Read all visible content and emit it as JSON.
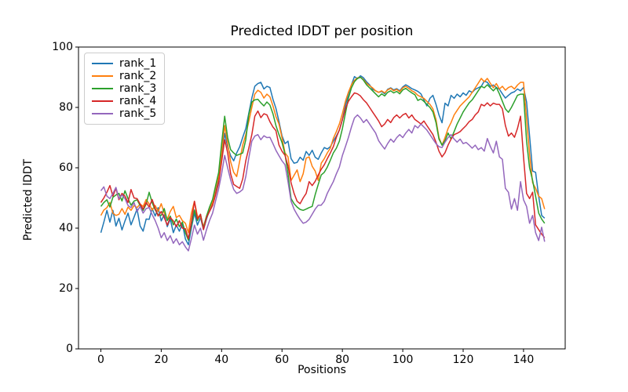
{
  "figure": {
    "title": "Predicted lDDT per position",
    "xlabel": "Positions",
    "ylabel": "Predicted lDDT"
  },
  "chart_data": {
    "type": "line",
    "title": "Predicted lDDT per position",
    "xlabel": "Positions",
    "ylabel": "Predicted lDDT",
    "xlim": [
      -7.4,
      153.8
    ],
    "ylim": [
      0,
      100
    ],
    "xticks": [
      0,
      20,
      40,
      60,
      80,
      100,
      120,
      140
    ],
    "yticks": [
      0,
      20,
      40,
      60,
      80,
      100
    ],
    "grid": false,
    "legend_position": "upper left",
    "x": [
      0,
      1,
      2,
      3,
      4,
      5,
      6,
      7,
      8,
      9,
      10,
      11,
      12,
      13,
      14,
      15,
      16,
      17,
      18,
      19,
      20,
      21,
      22,
      23,
      24,
      25,
      26,
      27,
      28,
      29,
      30,
      31,
      32,
      33,
      34,
      35,
      36,
      37,
      38,
      39,
      40,
      41,
      42,
      43,
      44,
      45,
      46,
      47,
      48,
      49,
      50,
      51,
      52,
      53,
      54,
      55,
      56,
      57,
      58,
      59,
      60,
      61,
      62,
      63,
      64,
      65,
      66,
      67,
      68,
      69,
      70,
      71,
      72,
      73,
      74,
      75,
      76,
      77,
      78,
      79,
      80,
      81,
      82,
      83,
      84,
      85,
      86,
      87,
      88,
      89,
      90,
      91,
      92,
      93,
      94,
      95,
      96,
      97,
      98,
      99,
      100,
      101,
      102,
      103,
      104,
      105,
      106,
      107,
      108,
      109,
      110,
      111,
      112,
      113,
      114,
      115,
      116,
      117,
      118,
      119,
      120,
      121,
      122,
      123,
      124,
      125,
      126,
      127,
      128,
      129,
      130,
      131,
      132,
      133,
      134,
      135,
      136,
      137,
      138,
      139,
      140,
      141,
      142,
      143,
      144,
      145,
      146,
      147
    ],
    "series": [
      {
        "name": "rank_1",
        "color": "#1f77b4",
        "values": [
          38.5,
          42.0,
          45.9,
          42.0,
          45.9,
          40.7,
          43.3,
          39.4,
          42.4,
          45.0,
          41.1,
          43.7,
          46.3,
          40.7,
          39.0,
          43.0,
          42.9,
          46.5,
          44.0,
          46.8,
          42.4,
          44.5,
          40.5,
          43.0,
          38.5,
          41.0,
          39.0,
          41.5,
          36.4,
          34.5,
          40.0,
          45.0,
          41.0,
          43.5,
          39.5,
          43.0,
          46.0,
          48.0,
          52.0,
          56.0,
          63.0,
          71.4,
          67.0,
          64.0,
          62.3,
          64.9,
          67.0,
          70.1,
          73.0,
          78.0,
          83.1,
          87.0,
          87.9,
          88.3,
          86.1,
          87.0,
          86.6,
          82.7,
          79.7,
          75.3,
          70.6,
          68.0,
          68.8,
          63.0,
          61.5,
          61.8,
          63.5,
          62.5,
          65.4,
          64.1,
          65.8,
          63.5,
          62.8,
          64.9,
          66.7,
          66.2,
          67.0,
          68.8,
          70.5,
          72.5,
          76.0,
          80.5,
          84.5,
          87.5,
          90.2,
          89.5,
          90.5,
          89.8,
          88.5,
          87.5,
          86.0,
          85.5,
          85.0,
          85.3,
          84.5,
          86.0,
          86.5,
          85.8,
          86.2,
          85.5,
          86.8,
          87.5,
          86.9,
          86.2,
          85.8,
          85.3,
          84.5,
          82.5,
          80.5,
          83.0,
          84.0,
          81.0,
          77.5,
          74.9,
          81.4,
          80.5,
          84.0,
          83.0,
          84.4,
          83.5,
          84.8,
          84.0,
          85.5,
          85.0,
          86.0,
          86.5,
          87.0,
          88.7,
          88.3,
          87.0,
          87.4,
          86.6,
          86.0,
          84.5,
          83.1,
          84.0,
          84.8,
          85.2,
          86.1,
          85.5,
          86.6,
          81.8,
          70.6,
          58.9,
          58.5,
          50.6,
          44.2,
          43.3
        ]
      },
      {
        "name": "rank_2",
        "color": "#ff7f0e",
        "values": [
          44.2,
          46.0,
          46.8,
          48.5,
          45.0,
          44.2,
          44.6,
          46.5,
          44.6,
          47.0,
          45.9,
          47.5,
          46.8,
          48.0,
          47.2,
          49.5,
          48.0,
          46.0,
          47.5,
          45.5,
          48.1,
          45.0,
          43.0,
          45.5,
          47.2,
          43.5,
          44.2,
          42.5,
          41.6,
          38.5,
          45.0,
          48.9,
          44.0,
          43.7,
          40.5,
          44.0,
          46.5,
          48.5,
          53.0,
          57.0,
          65.0,
          74.0,
          68.0,
          62.0,
          58.5,
          57.1,
          62.3,
          67.5,
          71.0,
          75.3,
          80.0,
          84.4,
          85.7,
          85.0,
          83.1,
          84.4,
          83.5,
          80.5,
          77.0,
          74.5,
          70.0,
          64.9,
          63.6,
          55.8,
          57.5,
          59.3,
          55.4,
          58.0,
          63.2,
          63.6,
          60.5,
          58.9,
          55.8,
          61.5,
          63.0,
          64.9,
          66.5,
          69.7,
          72.0,
          74.5,
          78.0,
          82.0,
          85.0,
          87.5,
          89.0,
          89.8,
          90.0,
          89.2,
          88.0,
          87.2,
          86.5,
          85.5,
          85.0,
          85.5,
          84.8,
          85.8,
          86.3,
          85.5,
          86.0,
          85.2,
          86.5,
          87.0,
          86.3,
          85.5,
          85.0,
          84.0,
          83.5,
          83.0,
          82.0,
          81.0,
          79.5,
          76.0,
          70.0,
          67.5,
          70.0,
          73.0,
          75.0,
          77.5,
          79.0,
          80.5,
          81.5,
          82.5,
          83.5,
          85.0,
          86.5,
          88.0,
          89.6,
          88.5,
          89.6,
          88.0,
          86.5,
          87.9,
          86.1,
          87.0,
          85.7,
          86.6,
          87.0,
          86.1,
          87.4,
          88.3,
          88.3,
          76.2,
          64.5,
          55.0,
          53.2,
          50.6,
          49.8,
          46.3
        ]
      },
      {
        "name": "rank_3",
        "color": "#2ca02c",
        "values": [
          47.2,
          48.5,
          49.4,
          47.0,
          50.2,
          51.0,
          51.5,
          49.0,
          52.4,
          49.8,
          47.6,
          49.0,
          49.4,
          47.5,
          45.9,
          48.0,
          51.9,
          48.5,
          46.0,
          44.5,
          44.2,
          46.5,
          42.5,
          44.0,
          41.1,
          43.0,
          40.5,
          42.0,
          38.5,
          36.0,
          41.0,
          46.0,
          42.5,
          44.6,
          40.0,
          44.0,
          47.0,
          49.5,
          54.0,
          58.4,
          68.0,
          77.1,
          70.0,
          66.0,
          64.9,
          64.1,
          64.5,
          64.9,
          69.3,
          77.5,
          81.8,
          82.5,
          82.7,
          81.5,
          80.5,
          81.8,
          80.8,
          77.9,
          74.0,
          71.0,
          68.4,
          64.5,
          58.0,
          49.8,
          48.1,
          47.0,
          46.2,
          45.9,
          46.3,
          46.8,
          47.2,
          51.1,
          54.5,
          57.6,
          58.5,
          60.2,
          62.5,
          64.9,
          66.5,
          68.8,
          73.0,
          78.0,
          83.0,
          86.5,
          88.5,
          89.6,
          90.0,
          89.0,
          87.5,
          86.5,
          85.5,
          84.5,
          83.5,
          84.5,
          83.8,
          85.0,
          85.5,
          84.8,
          85.3,
          84.5,
          85.8,
          86.3,
          85.5,
          84.8,
          84.2,
          82.3,
          82.8,
          82.0,
          81.0,
          80.0,
          78.5,
          75.0,
          69.5,
          67.5,
          69.0,
          71.5,
          69.5,
          72.0,
          74.5,
          76.5,
          78.5,
          80.0,
          81.5,
          82.5,
          84.0,
          85.5,
          87.0,
          86.5,
          87.5,
          86.5,
          85.5,
          86.6,
          84.5,
          82.0,
          79.5,
          78.4,
          80.0,
          82.0,
          84.0,
          84.4,
          84.4,
          68.8,
          60.0,
          55.8,
          50.6,
          45.0,
          43.0,
          41.6
        ]
      },
      {
        "name": "rank_4",
        "color": "#d62728",
        "values": [
          48.5,
          50.0,
          51.9,
          54.1,
          50.6,
          53.2,
          49.4,
          51.5,
          50.6,
          48.5,
          52.8,
          50.0,
          49.8,
          48.0,
          46.3,
          48.5,
          47.0,
          49.5,
          46.5,
          44.0,
          45.5,
          43.5,
          41.0,
          43.5,
          42.4,
          40.5,
          42.5,
          40.0,
          39.8,
          36.5,
          42.0,
          48.9,
          43.0,
          44.6,
          39.5,
          43.5,
          45.5,
          47.5,
          51.0,
          55.0,
          62.0,
          69.3,
          65.0,
          58.0,
          54.5,
          53.8,
          53.2,
          56.3,
          62.3,
          66.5,
          71.0,
          77.1,
          78.8,
          76.6,
          77.9,
          77.5,
          75.3,
          73.5,
          72.3,
          67.5,
          65.5,
          64.1,
          60.6,
          55.0,
          51.5,
          48.9,
          48.1,
          50.0,
          51.5,
          55.4,
          54.1,
          55.5,
          57.6,
          59.5,
          61.0,
          63.0,
          64.9,
          67.0,
          70.1,
          72.5,
          76.0,
          79.5,
          82.0,
          83.5,
          84.8,
          84.5,
          83.8,
          82.5,
          81.5,
          80.0,
          78.5,
          77.0,
          75.5,
          73.6,
          74.5,
          76.0,
          75.0,
          76.6,
          77.5,
          76.5,
          77.5,
          78.0,
          76.5,
          77.5,
          76.0,
          75.3,
          74.5,
          75.5,
          74.0,
          72.5,
          71.0,
          68.5,
          65.5,
          63.6,
          65.0,
          67.5,
          69.5,
          71.0,
          71.4,
          72.0,
          73.0,
          74.0,
          75.3,
          76.0,
          77.5,
          78.5,
          81.0,
          80.5,
          81.5,
          80.5,
          81.4,
          81.0,
          81.0,
          79.5,
          74.0,
          70.5,
          71.5,
          70.1,
          73.0,
          77.1,
          63.6,
          51.5,
          49.8,
          51.9,
          41.1,
          39.5,
          38.0,
          36.8
        ]
      },
      {
        "name": "rank_5",
        "color": "#9467bd",
        "values": [
          52.4,
          53.7,
          50.6,
          49.8,
          51.5,
          53.5,
          49.8,
          51.0,
          49.8,
          47.5,
          46.8,
          48.5,
          45.5,
          47.2,
          45.0,
          46.5,
          46.8,
          44.5,
          42.5,
          40.0,
          36.8,
          38.5,
          35.9,
          37.5,
          35.0,
          36.5,
          34.5,
          35.5,
          33.8,
          32.5,
          36.5,
          41.0,
          38.0,
          40.0,
          36.0,
          39.5,
          42.5,
          45.0,
          49.0,
          53.0,
          58.0,
          64.1,
          60.0,
          56.0,
          52.8,
          51.5,
          52.0,
          52.8,
          57.1,
          63.2,
          68.8,
          70.5,
          71.0,
          69.3,
          70.6,
          70.0,
          70.1,
          68.0,
          65.8,
          64.0,
          62.3,
          61.0,
          55.4,
          48.9,
          46.3,
          44.5,
          42.9,
          41.6,
          42.0,
          42.9,
          44.6,
          46.3,
          47.6,
          47.6,
          48.9,
          51.5,
          53.5,
          55.4,
          58.0,
          60.2,
          64.1,
          67.0,
          70.0,
          73.5,
          76.5,
          77.5,
          76.5,
          75.0,
          76.0,
          74.5,
          73.0,
          71.5,
          69.0,
          67.5,
          66.2,
          68.0,
          69.5,
          68.5,
          70.0,
          71.0,
          70.0,
          71.5,
          72.7,
          71.5,
          74.0,
          73.2,
          74.5,
          73.5,
          72.5,
          71.0,
          69.5,
          68.0,
          67.0,
          66.7,
          68.5,
          70.0,
          71.0,
          69.5,
          68.5,
          69.5,
          68.0,
          68.4,
          67.5,
          66.5,
          67.5,
          66.0,
          66.7,
          65.5,
          69.7,
          67.1,
          64.9,
          68.8,
          63.6,
          62.8,
          53.2,
          51.9,
          46.3,
          49.8,
          45.9,
          55.4,
          49.4,
          47.2,
          41.6,
          44.2,
          38.5,
          35.9,
          40.3,
          35.5
        ]
      }
    ]
  }
}
